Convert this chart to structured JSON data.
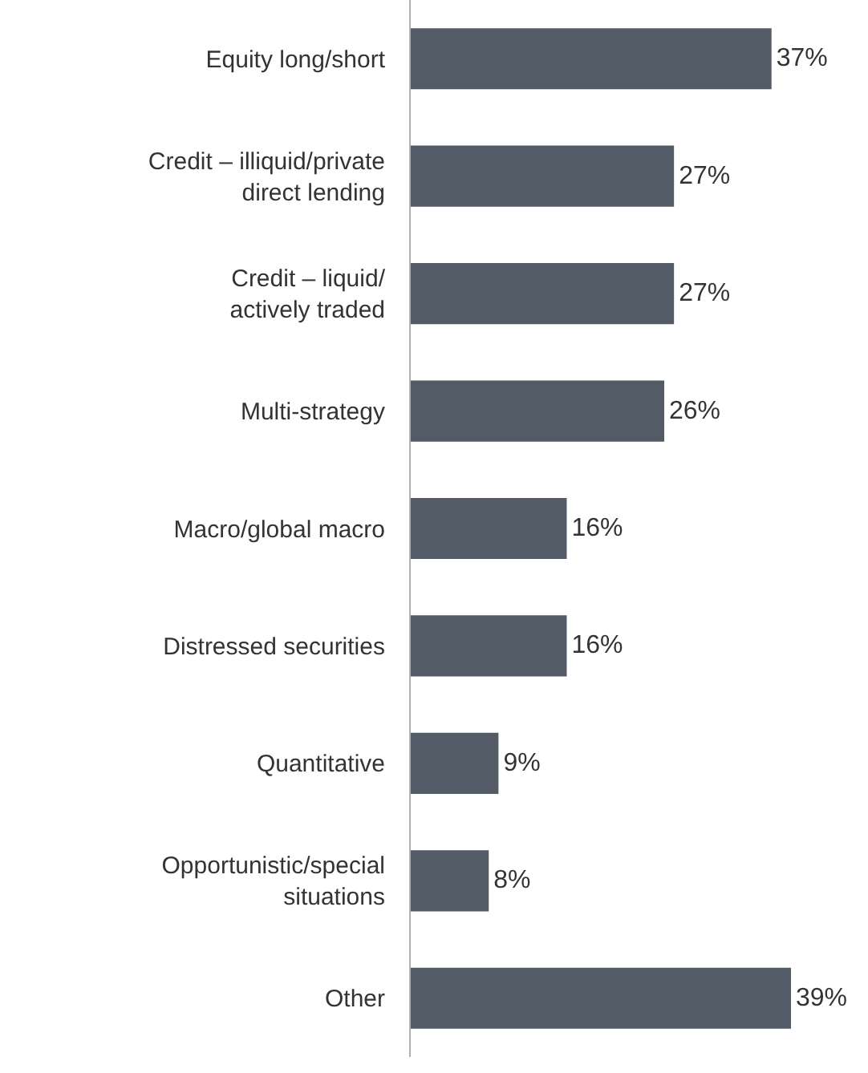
{
  "chart_data": {
    "type": "bar",
    "orientation": "horizontal",
    "categories": [
      "Equity long/short",
      "Credit – illiquid/private\ndirect lending",
      "Credit – liquid/\nactively traded",
      "Multi-strategy",
      "Macro/global macro",
      "Distressed securities",
      "Quantitative",
      "Opportunistic/special\nsituations",
      "Other"
    ],
    "values": [
      37,
      27,
      27,
      26,
      16,
      16,
      9,
      8,
      39
    ],
    "value_labels": [
      "37%",
      "27%",
      "27%",
      "26%",
      "16%",
      "16%",
      "9%",
      "8%",
      "39%"
    ],
    "color": "#535b66"
  }
}
